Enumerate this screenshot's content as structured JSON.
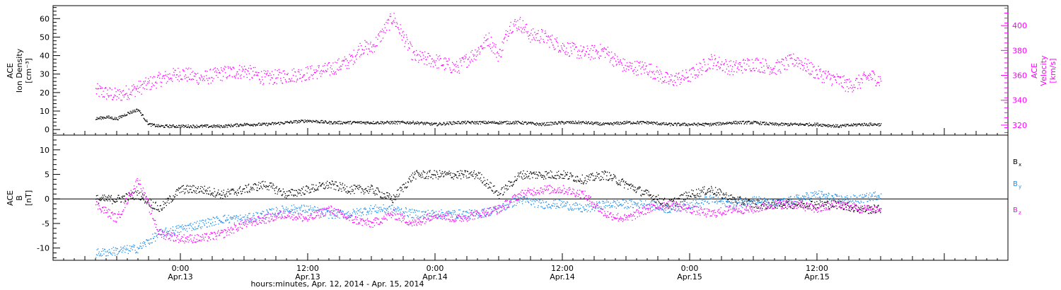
{
  "chart_data": [
    {
      "type": "scatter",
      "panel": "top",
      "left_axis_label": [
        "ACE",
        "Ion Density",
        "[cm⁻³]"
      ],
      "right_axis_label": [
        "ACE",
        "Velocity",
        "[km/s]"
      ],
      "left_ylim": [
        -3,
        67
      ],
      "left_ticks": [
        "0",
        "10",
        "20",
        "30",
        "40",
        "50",
        "60"
      ],
      "right_ylim": [
        312,
        416
      ],
      "right_ticks": [
        "320",
        "340",
        "360",
        "380",
        "400"
      ],
      "colors": {
        "density": "#000000",
        "velocity": "#ff00ff"
      },
      "series": [
        {
          "name": "Ion Density",
          "axis": "left",
          "x_hours": [
            -8,
            -7,
            -6,
            -5,
            -4,
            -3,
            -2,
            0,
            2,
            4,
            6,
            8,
            10,
            12,
            14,
            16,
            18,
            20,
            22,
            24,
            26,
            28,
            30,
            32,
            34,
            36,
            38,
            40,
            42,
            44,
            46,
            48,
            50,
            52,
            54,
            56,
            58,
            60,
            62,
            64,
            66
          ],
          "values": [
            6,
            7,
            6,
            9,
            11,
            3,
            2,
            2,
            2,
            2,
            3,
            3,
            4,
            5,
            4,
            4,
            4,
            4,
            4,
            3,
            4,
            4,
            4,
            4,
            3,
            4,
            4,
            3,
            4,
            4,
            3,
            3,
            3,
            4,
            4,
            3,
            3,
            3,
            2,
            3,
            3
          ]
        },
        {
          "name": "Velocity",
          "axis": "right",
          "x_hours": [
            -8,
            -6,
            -4,
            -2,
            0,
            2,
            4,
            6,
            8,
            10,
            12,
            14,
            16,
            17,
            18,
            19,
            20,
            22,
            24,
            26,
            28,
            29,
            30,
            31,
            32,
            33,
            34,
            36,
            38,
            40,
            41,
            42,
            44,
            46,
            48,
            50,
            52,
            54,
            56,
            58,
            60,
            62,
            63,
            64,
            65,
            66
          ],
          "values": [
            348,
            344,
            350,
            357,
            362,
            358,
            362,
            364,
            358,
            360,
            362,
            365,
            372,
            383,
            382,
            394,
            407,
            375,
            372,
            366,
            380,
            390,
            376,
            400,
            402,
            392,
            392,
            383,
            378,
            380,
            372,
            367,
            366,
            356,
            360,
            372,
            366,
            370,
            366,
            373,
            362,
            356,
            352,
            355,
            360,
            356
          ]
        }
      ]
    },
    {
      "type": "scatter",
      "panel": "bottom",
      "left_axis_label": [
        "ACE",
        "B",
        "[nT]"
      ],
      "ylim": [
        -12.5,
        13
      ],
      "yticks": [
        "-10",
        "-5",
        "0",
        "5",
        "10"
      ],
      "zero_line": true,
      "legend_placement": "right",
      "series": [
        {
          "name": "B",
          "sub": "x",
          "color": "#000000",
          "x_hours": [
            -8,
            -6,
            -4,
            -2,
            0,
            2,
            4,
            6,
            8,
            10,
            12,
            14,
            16,
            18,
            20,
            22,
            24,
            26,
            28,
            30,
            32,
            34,
            36,
            38,
            40,
            42,
            44,
            46,
            48,
            50,
            52,
            54,
            56,
            58,
            60,
            62,
            64,
            66
          ],
          "values": [
            0,
            0,
            1,
            -2,
            2,
            2,
            1,
            2,
            3,
            1,
            2,
            3,
            2,
            2,
            0,
            5,
            5,
            5,
            5,
            1,
            5,
            5,
            5,
            4,
            5,
            3,
            1,
            -1,
            1,
            2,
            0,
            -1,
            -1,
            -1,
            -1,
            -1,
            -2,
            -2
          ]
        },
        {
          "name": "B",
          "sub": "y",
          "color": "#1f8fef",
          "x_hours": [
            -8,
            -6,
            -4,
            -2,
            0,
            2,
            4,
            6,
            8,
            10,
            12,
            14,
            16,
            18,
            20,
            22,
            24,
            26,
            28,
            30,
            32,
            34,
            36,
            38,
            40,
            42,
            44,
            46,
            48,
            50,
            52,
            54,
            56,
            58,
            60,
            62,
            64,
            66
          ],
          "values": [
            -11,
            -10.5,
            -10,
            -7,
            -6,
            -5,
            -4,
            -4,
            -3,
            -2,
            -2,
            -3,
            -3,
            -2,
            -2,
            -3,
            -3,
            -3,
            -3,
            -2,
            0,
            -1,
            -1,
            -2,
            -1,
            -1,
            -1,
            -2,
            -1,
            0,
            -1,
            0,
            -1,
            0,
            1,
            0,
            0,
            1
          ]
        },
        {
          "name": "B",
          "sub": "z",
          "color": "#ff00ff",
          "x_hours": [
            -8,
            -6,
            -4,
            -2,
            0,
            2,
            4,
            6,
            8,
            10,
            12,
            14,
            16,
            18,
            20,
            22,
            24,
            26,
            28,
            30,
            32,
            34,
            36,
            38,
            40,
            42,
            44,
            46,
            48,
            50,
            52,
            54,
            56,
            58,
            60,
            62,
            64,
            66
          ],
          "values": [
            -1,
            -4,
            4,
            -7,
            -8,
            -8,
            -7,
            -5,
            -4,
            -3,
            -4,
            -2,
            -4,
            -5,
            -3,
            -5,
            -3,
            -4,
            -3,
            -2,
            1,
            2,
            2,
            1,
            -3,
            -4,
            -2,
            -1,
            -2,
            -3,
            -2,
            -2,
            -1,
            -1,
            -2,
            -1,
            -2,
            -2
          ]
        }
      ]
    }
  ],
  "x_axis": {
    "xlim_hours": [
      -12,
      78
    ],
    "major_tick_hours": [
      0,
      12,
      24,
      36,
      48,
      60
    ],
    "tick_labels": [
      {
        "time": "0:00",
        "date": "Apr.13"
      },
      {
        "time": "12:00",
        "date": "Apr.13"
      },
      {
        "time": "0:00",
        "date": "Apr.14"
      },
      {
        "time": "12:00",
        "date": "Apr.14"
      },
      {
        "time": "0:00",
        "date": "Apr.15"
      },
      {
        "time": "12:00",
        "date": "Apr.15"
      }
    ],
    "title": "hours:minutes, Apr. 12, 2014 - Apr. 15, 2014"
  }
}
